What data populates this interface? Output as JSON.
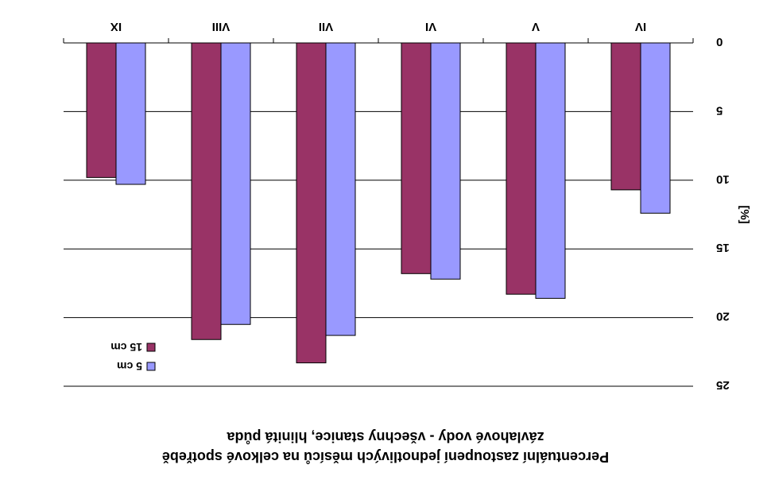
{
  "chart_data": {
    "type": "bar",
    "title_lines": [
      "Percentuální zastoupení jednotlivých měsíců na celkové spotřebě",
      "závlahové vody - všechny stanice, hlinitá půda"
    ],
    "ylabel": "[%]",
    "xlabel": "",
    "categories": [
      "IV",
      "V",
      "VI",
      "VII",
      "VIII",
      "IX"
    ],
    "series": [
      {
        "name": "5 cm",
        "values": [
          12.4,
          18.6,
          17.2,
          21.3,
          20.5,
          10.3
        ]
      },
      {
        "name": "15 cm",
        "values": [
          10.7,
          18.3,
          16.8,
          23.3,
          21.6,
          9.8
        ]
      }
    ],
    "ylim": [
      0,
      25
    ],
    "yticks": [
      0,
      5,
      10,
      15,
      20,
      25
    ],
    "grid": true,
    "legend_position": "bottom-left",
    "colors": {
      "series_5cm": "#9999ff",
      "series_15cm": "#993366",
      "gridline": "#000000",
      "background": "#ffffff"
    },
    "orientation_note": "image rendered rotated 180 degrees"
  }
}
